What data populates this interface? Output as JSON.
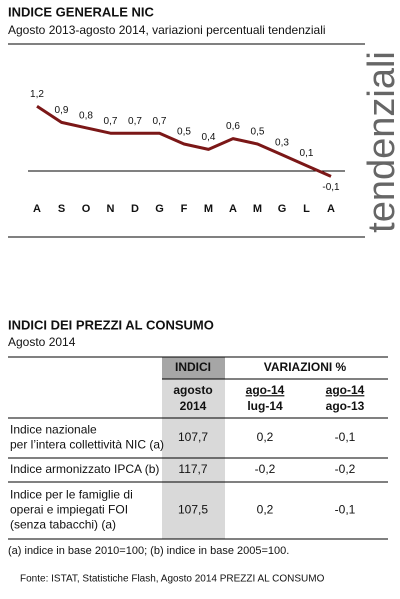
{
  "chart_data": {
    "type": "line",
    "title": "INDICE GENERALE NIC",
    "subtitle": "Agosto 2013-agosto 2014, variazioni percentuali tendenziali",
    "side_label": "tendenziali",
    "categories": [
      "A",
      "S",
      "O",
      "N",
      "D",
      "G",
      "F",
      "M",
      "A",
      "M",
      "G",
      "L",
      "A"
    ],
    "values": [
      1.2,
      0.9,
      0.8,
      0.7,
      0.7,
      0.7,
      0.5,
      0.4,
      0.6,
      0.5,
      0.3,
      0.1,
      -0.1
    ],
    "value_labels": [
      "1,2",
      "0,9",
      "0,8",
      "0,7",
      "0,7",
      "0,7",
      "0,5",
      "0,4",
      "0,6",
      "0,5",
      "0,3",
      "0,1",
      "-0,1"
    ],
    "color": "#7b1717",
    "ylim": [
      -0.5,
      1.5
    ]
  },
  "table_section": {
    "title": "INDICI DEI PREZZI AL CONSUMO",
    "subtitle": "Agosto 2014",
    "header": {
      "indici": "INDICI",
      "variazioni": "VARIAZIONI %",
      "columns": [
        [
          "agosto",
          "2014"
        ],
        [
          "ago-14",
          "lug-14"
        ],
        [
          "ago-14",
          "ago-13"
        ]
      ]
    },
    "rows": [
      {
        "label": [
          "Indice nazionale",
          "per l’intera collettività NIC (a)"
        ],
        "cells": [
          "107,7",
          "0,2",
          "-0,1"
        ]
      },
      {
        "label": [
          "Indice armonizzato IPCA (b)"
        ],
        "cells": [
          "117,7",
          "-0,2",
          "-0,2"
        ]
      },
      {
        "label": [
          "Indice per le famiglie di",
          "operai e impiegati FOI",
          "(senza tabacchi) (a)"
        ],
        "cells": [
          "107,5",
          "0,2",
          "-0,1"
        ]
      }
    ],
    "footnote": "(a) indice in base 2010=100;  (b) indice in base 2005=100.",
    "source": "Fonte: ISTAT, Statistiche Flash, Agosto 2014 PREZZI AL CONSUMO"
  }
}
